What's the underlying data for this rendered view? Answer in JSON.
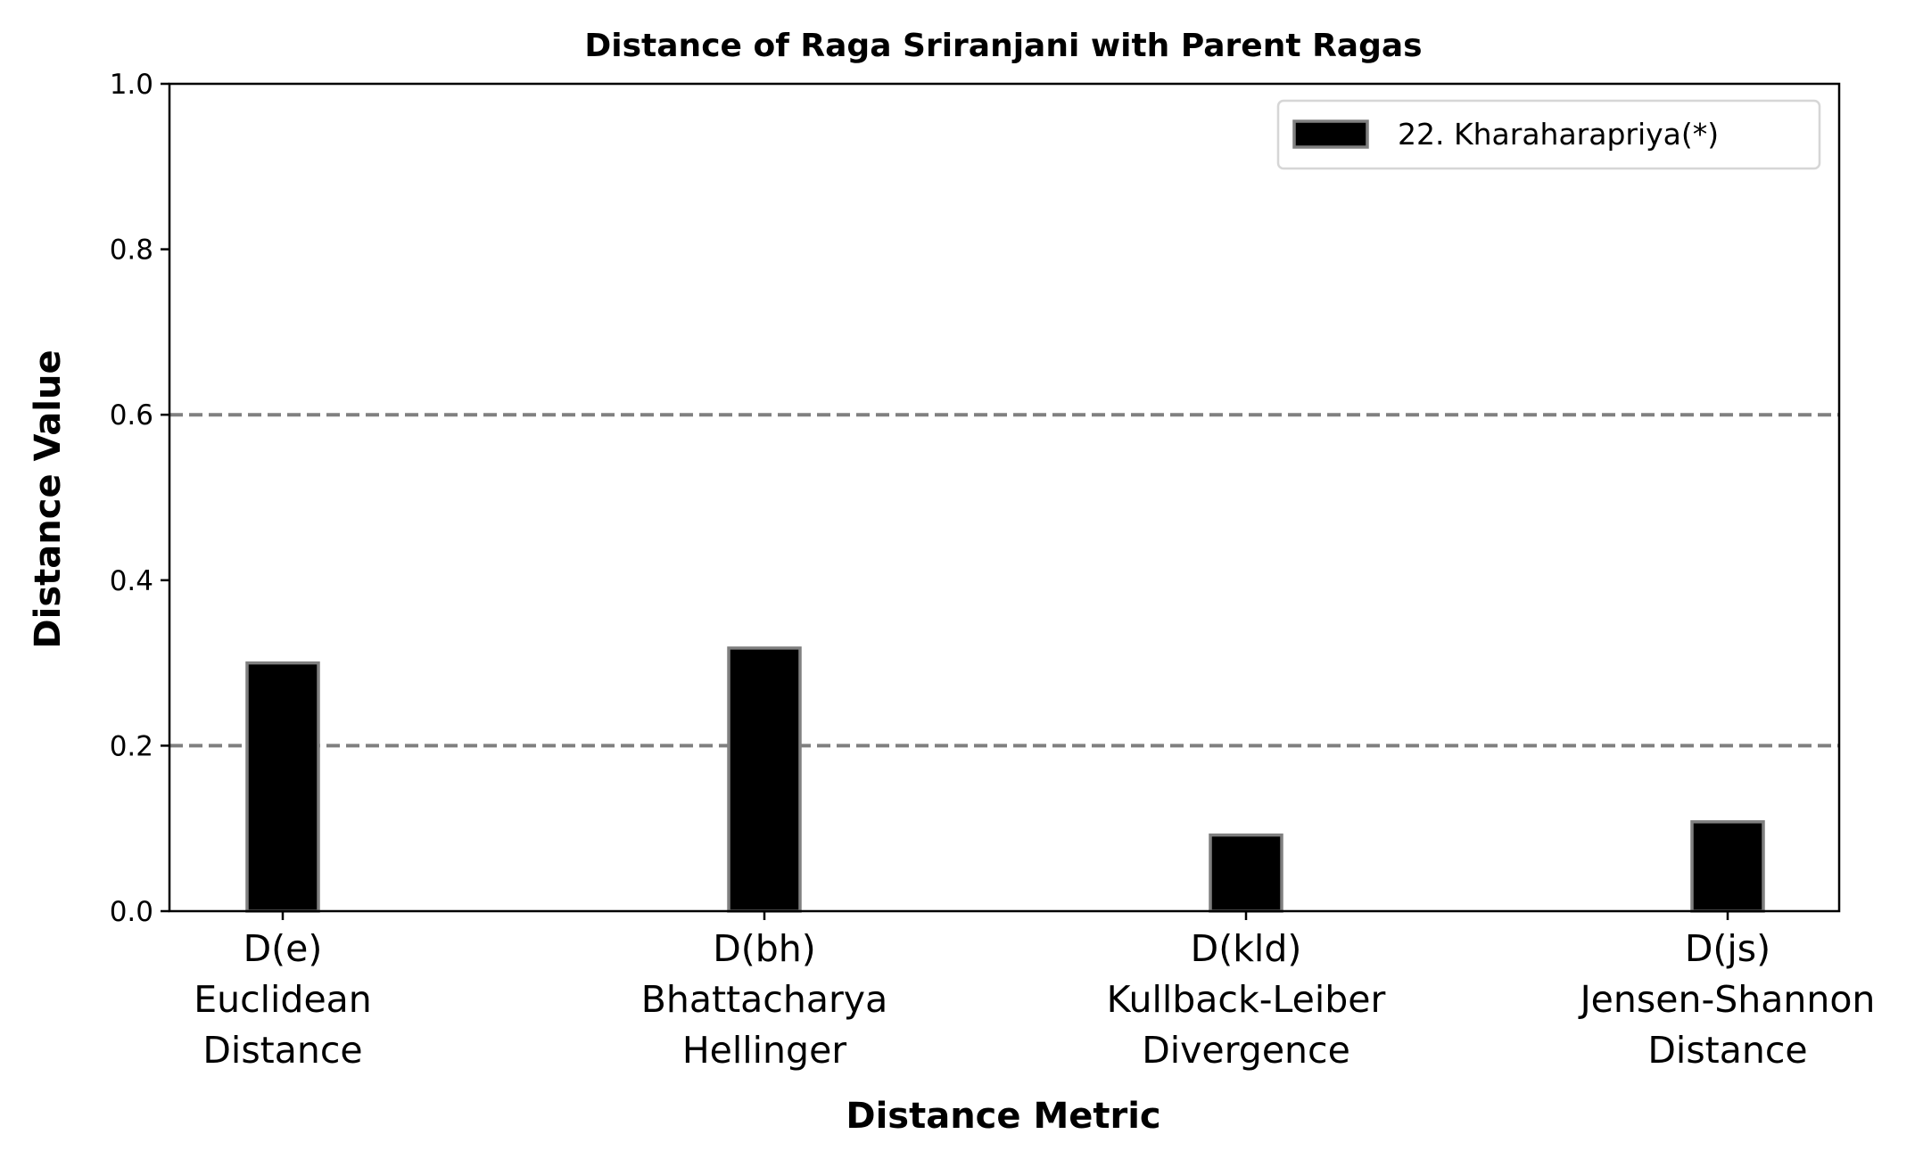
{
  "chart_data": {
    "type": "bar",
    "title": "Distance of Raga Sriranjani with Parent Ragas",
    "xlabel": "Distance Metric",
    "ylabel": "Distance Value",
    "ylim": [
      0,
      1.0
    ],
    "yticks": [
      "0.0",
      "0.2",
      "0.4",
      "0.6",
      "0.8",
      "1.0"
    ],
    "categories": [
      [
        "D(e)",
        "Euclidean",
        "Distance"
      ],
      [
        "D(bh)",
        "Bhattacharya",
        "Hellinger"
      ],
      [
        "D(kld)",
        "Kullback-Leiber",
        "Divergence"
      ],
      [
        "D(js)",
        "Jensen-Shannon",
        "Distance"
      ]
    ],
    "series": [
      {
        "name": "22. Kharaharapriya(*)",
        "values": [
          0.3,
          0.318,
          0.092,
          0.108
        ],
        "color": "#000000",
        "edge_color": "#808080"
      }
    ],
    "reference_lines": [
      {
        "y": 0.2,
        "style": "dashed",
        "color": "#808080"
      },
      {
        "y": 0.6,
        "style": "dashed",
        "color": "#808080"
      }
    ],
    "legend_position": "top-right",
    "grid": false
  }
}
